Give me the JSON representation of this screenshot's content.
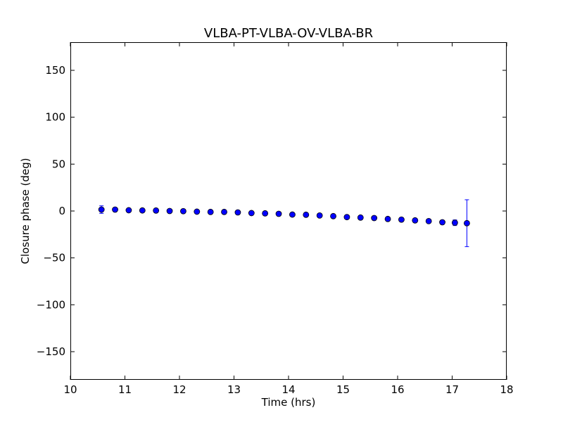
{
  "chart_data": {
    "type": "scatter",
    "title": "VLBA-PT-VLBA-OV-VLBA-BR",
    "xlabel": "Time (hrs)",
    "ylabel": "Closure phase (deg)",
    "xlim": [
      10,
      18
    ],
    "ylim": [
      -180,
      180
    ],
    "xticks": [
      10,
      11,
      12,
      13,
      14,
      15,
      16,
      17,
      18
    ],
    "yticks": [
      -150,
      -100,
      -50,
      0,
      50,
      100,
      150
    ],
    "xtick_labels": [
      "10",
      "11",
      "12",
      "13",
      "14",
      "15",
      "16",
      "17",
      "18"
    ],
    "ytick_labels": [
      "−150",
      "−100",
      "−50",
      "0",
      "50",
      "100",
      "150"
    ],
    "grid": false,
    "marker_color": "#0000ff",
    "errorbar_color": "#0000ff",
    "points": [
      {
        "x": 10.57,
        "y": 1.5,
        "err": 4
      },
      {
        "x": 10.82,
        "y": 1.5,
        "err": 1.5
      },
      {
        "x": 11.07,
        "y": 0.8,
        "err": 1.5
      },
      {
        "x": 11.32,
        "y": 0.6,
        "err": 1.5
      },
      {
        "x": 11.57,
        "y": 0.5,
        "err": 1.5
      },
      {
        "x": 11.82,
        "y": 0,
        "err": 1.5
      },
      {
        "x": 12.07,
        "y": -0.2,
        "err": 1.5
      },
      {
        "x": 12.32,
        "y": -0.7,
        "err": 1.5
      },
      {
        "x": 12.57,
        "y": -1,
        "err": 1.5
      },
      {
        "x": 12.82,
        "y": -1,
        "err": 1.5
      },
      {
        "x": 13.07,
        "y": -1.5,
        "err": 1.5
      },
      {
        "x": 13.32,
        "y": -2.2,
        "err": 1.5
      },
      {
        "x": 13.57,
        "y": -2.5,
        "err": 1.5
      },
      {
        "x": 13.82,
        "y": -3,
        "err": 1.5
      },
      {
        "x": 14.07,
        "y": -3.8,
        "err": 1.5
      },
      {
        "x": 14.32,
        "y": -4,
        "err": 1.5
      },
      {
        "x": 14.57,
        "y": -4.8,
        "err": 1.5
      },
      {
        "x": 14.82,
        "y": -5.5,
        "err": 1.5
      },
      {
        "x": 15.07,
        "y": -6.5,
        "err": 1.5
      },
      {
        "x": 15.32,
        "y": -7,
        "err": 1.5
      },
      {
        "x": 15.57,
        "y": -7.5,
        "err": 1.5
      },
      {
        "x": 15.82,
        "y": -8.5,
        "err": 1.5
      },
      {
        "x": 16.07,
        "y": -9.2,
        "err": 1.5
      },
      {
        "x": 16.32,
        "y": -10,
        "err": 1.5
      },
      {
        "x": 16.57,
        "y": -10.8,
        "err": 1.5
      },
      {
        "x": 16.82,
        "y": -12,
        "err": 1.5
      },
      {
        "x": 17.05,
        "y": -12.5,
        "err": 3
      },
      {
        "x": 17.27,
        "y": -13,
        "err": 25
      }
    ]
  }
}
